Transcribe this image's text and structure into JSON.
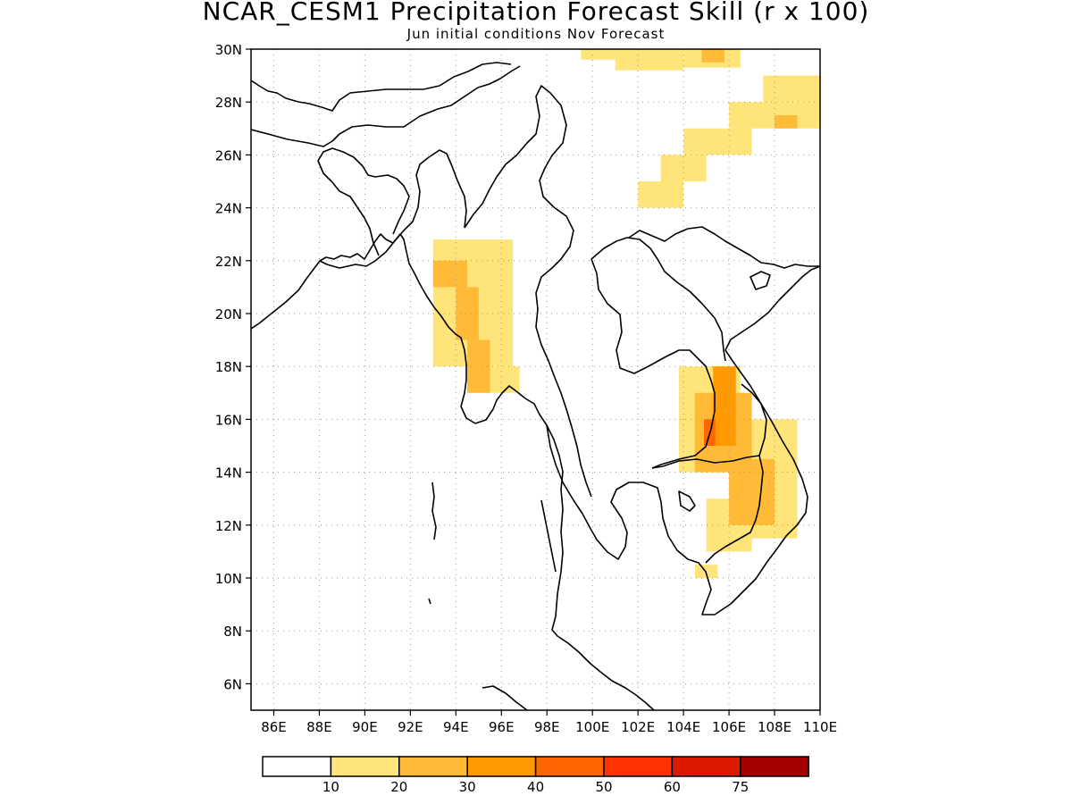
{
  "title": "NCAR_CESM1 Precipitation Forecast Skill (r x 100)",
  "subtitle": "Jun initial conditions  Nov Forecast",
  "colors": {
    "land_outline": "#000000",
    "grid": "#9a9a9a",
    "levels": [
      "#ffffff",
      "#ffe47a",
      "#ffbb38",
      "#ff9a00",
      "#ff6600",
      "#ff3300",
      "#dd1a00",
      "#a50000"
    ]
  },
  "colorbar": {
    "labels": [
      "10",
      "20",
      "30",
      "40",
      "50",
      "60",
      "75"
    ]
  },
  "chart_data": {
    "type": "heatmap",
    "title": "NCAR_CESM1 Precipitation Forecast Skill (r x 100)",
    "subtitle": "Jun initial conditions  Nov Forecast",
    "variable": "r x 100",
    "lon_range": [
      85,
      110
    ],
    "lat_range": [
      5,
      30
    ],
    "grid": true,
    "x_ticks": [
      "86E",
      "88E",
      "90E",
      "92E",
      "94E",
      "96E",
      "98E",
      "100E",
      "102E",
      "104E",
      "106E",
      "108E",
      "110E"
    ],
    "y_ticks": [
      "6N",
      "8N",
      "10N",
      "12N",
      "14N",
      "16N",
      "18N",
      "20N",
      "22N",
      "24N",
      "26N",
      "28N",
      "30N"
    ],
    "levels": [
      10,
      20,
      30,
      40,
      50,
      60,
      75
    ],
    "regions": [
      {
        "name": "north-edge",
        "level": 1,
        "lon": [
          99.5,
          101
        ],
        "lat": [
          29.6,
          30
        ]
      },
      {
        "name": "north-edge",
        "level": 1,
        "lon": [
          101,
          104
        ],
        "lat": [
          29.2,
          30
        ]
      },
      {
        "name": "north-edge",
        "level": 1,
        "lon": [
          104,
          106.5
        ],
        "lat": [
          29.3,
          30
        ]
      },
      {
        "name": "north-edge",
        "level": 2,
        "lon": [
          104.8,
          105.8
        ],
        "lat": [
          29.5,
          30
        ]
      },
      {
        "name": "sichuan-band",
        "level": 1,
        "lon": [
          102,
          104
        ],
        "lat": [
          24,
          25
        ]
      },
      {
        "name": "sichuan-band",
        "level": 1,
        "lon": [
          103,
          105
        ],
        "lat": [
          25,
          26
        ]
      },
      {
        "name": "sichuan-band",
        "level": 1,
        "lon": [
          104,
          107
        ],
        "lat": [
          26,
          27
        ]
      },
      {
        "name": "sichuan-band",
        "level": 1,
        "lon": [
          106,
          110
        ],
        "lat": [
          27,
          28
        ]
      },
      {
        "name": "sichuan-band",
        "level": 1,
        "lon": [
          107.5,
          110
        ],
        "lat": [
          28,
          29
        ]
      },
      {
        "name": "sichuan-band",
        "level": 2,
        "lon": [
          108,
          109
        ],
        "lat": [
          27,
          27.5
        ]
      },
      {
        "name": "myanmar-west",
        "level": 1,
        "lon": [
          93,
          96.5
        ],
        "lat": [
          18,
          22.8
        ]
      },
      {
        "name": "myanmar-west",
        "level": 1,
        "lon": [
          95,
          96.8
        ],
        "lat": [
          17,
          18
        ]
      },
      {
        "name": "myanmar-west",
        "level": 2,
        "lon": [
          93,
          94.5
        ],
        "lat": [
          21,
          22
        ]
      },
      {
        "name": "myanmar-west",
        "level": 2,
        "lon": [
          94,
          95
        ],
        "lat": [
          19,
          21
        ]
      },
      {
        "name": "myanmar-west",
        "level": 2,
        "lon": [
          94.5,
          95.5
        ],
        "lat": [
          17,
          19
        ]
      },
      {
        "name": "laos-cambodia",
        "level": 1,
        "lon": [
          103.8,
          106.5
        ],
        "lat": [
          14,
          18
        ]
      },
      {
        "name": "laos-cambodia",
        "level": 1,
        "lon": [
          106.5,
          109
        ],
        "lat": [
          11.5,
          16
        ]
      },
      {
        "name": "laos-cambodia",
        "level": 1,
        "lon": [
          105,
          107
        ],
        "lat": [
          11,
          13
        ]
      },
      {
        "name": "laos-cambodia",
        "level": 1,
        "lon": [
          104.5,
          105.5
        ],
        "lat": [
          10,
          10.5
        ]
      },
      {
        "name": "laos-cambodia",
        "level": 2,
        "lon": [
          104.5,
          107
        ],
        "lat": [
          14,
          17
        ]
      },
      {
        "name": "laos-cambodia",
        "level": 2,
        "lon": [
          106,
          108
        ],
        "lat": [
          12,
          14.5
        ]
      },
      {
        "name": "laos-cambodia",
        "level": 3,
        "lon": [
          105.3,
          106.3
        ],
        "lat": [
          15,
          18
        ]
      },
      {
        "name": "laos-cambodia",
        "level": 4,
        "lon": [
          104.9,
          105.4
        ],
        "lat": [
          15,
          16
        ]
      }
    ]
  }
}
